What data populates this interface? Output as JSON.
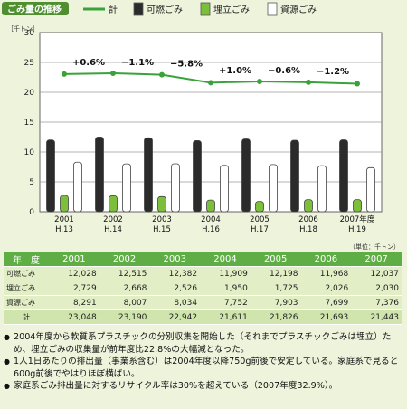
{
  "chart_data": {
    "type": "bar",
    "title": "ごみ量の推移",
    "y_unit": "［千トン］",
    "ylim": [
      0,
      30
    ],
    "yticks": [
      0,
      5,
      10,
      15,
      20,
      25,
      30
    ],
    "categories": [
      "2001\nH.13",
      "2002\nH.14",
      "2003\nH.15",
      "2004\nH.16",
      "2005\nH.17",
      "2006\nH.18",
      "2007年度\nH.19"
    ],
    "series": [
      {
        "name": "可燃ごみ",
        "kind": "bar",
        "color": "#2b2b2b",
        "values": [
          12.028,
          12.515,
          12.382,
          11.909,
          12.198,
          11.968,
          12.037
        ]
      },
      {
        "name": "埋立ごみ",
        "kind": "bar",
        "color": "#7cbf3a",
        "values": [
          2.729,
          2.668,
          2.526,
          1.95,
          1.725,
          2.026,
          2.03
        ]
      },
      {
        "name": "資源ごみ",
        "kind": "bar",
        "color": "#ffffff",
        "values": [
          8.291,
          8.007,
          8.034,
          7.752,
          7.903,
          7.699,
          7.376
        ]
      },
      {
        "name": "計",
        "kind": "line",
        "color": "#3aa23a",
        "values": [
          23.048,
          23.19,
          22.942,
          21.611,
          21.826,
          21.693,
          21.443
        ]
      }
    ],
    "annotations": [
      "",
      "+0.6%",
      "−1.1%",
      "−5.8%",
      "+1.0%",
      "−0.6%",
      "−1.2%"
    ],
    "grid": true,
    "legend": "top"
  },
  "table": {
    "unit": "（単位：千トン）",
    "header_label": "年　度",
    "years": [
      "2001",
      "2002",
      "2003",
      "2004",
      "2005",
      "2006",
      "2007"
    ],
    "rows": [
      {
        "label": "可燃ごみ",
        "values": [
          "12,028",
          "12,515",
          "12,382",
          "11,909",
          "12,198",
          "11,968",
          "12,037"
        ]
      },
      {
        "label": "埋立ごみ",
        "values": [
          "2,729",
          "2,668",
          "2,526",
          "1,950",
          "1,725",
          "2,026",
          "2,030"
        ]
      },
      {
        "label": "資源ごみ",
        "values": [
          "8,291",
          "8,007",
          "8,034",
          "7,752",
          "7,903",
          "7,699",
          "7,376"
        ]
      },
      {
        "label": "計",
        "values": [
          "23,048",
          "23,190",
          "22,942",
          "21,611",
          "21,826",
          "21,693",
          "21,443"
        ]
      }
    ]
  },
  "notes": [
    "2004年度から軟質系プラスチックの分別収集を開始した（それまでプラスチックごみは埋立）ため、埋立ごみの収集量が前年度比22.8%の大幅減となった。",
    "1人1日あたりの排出量（事業系含む）は2004年度以降750g前後で安定している。家庭系で見ると600g前後でやはりほぼ横ばい。",
    "家庭系ごみ排出量に対するリサイクル率は30%を超えている（2007年度32.9%）。"
  ]
}
